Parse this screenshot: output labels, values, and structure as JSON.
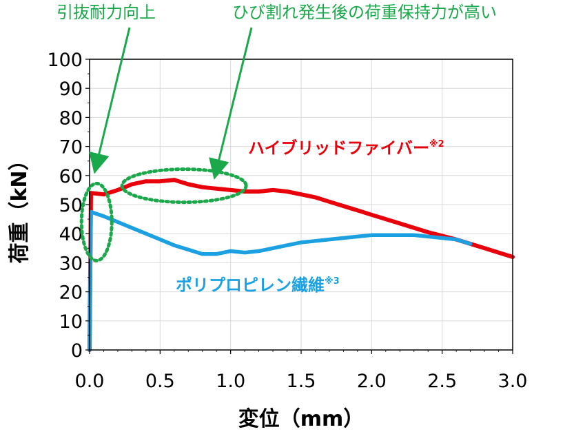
{
  "chart_data": {
    "type": "line",
    "xlabel": "変位（mm）",
    "ylabel": "荷重（kN）",
    "xlim": [
      0,
      3.0
    ],
    "ylim": [
      0,
      100
    ],
    "xticks": [
      "0.0",
      "0.5",
      "1.0",
      "1.5",
      "2.0",
      "2.5",
      "3.0"
    ],
    "yticks": [
      "0",
      "10",
      "20",
      "30",
      "40",
      "50",
      "60",
      "70",
      "80",
      "90",
      "100"
    ],
    "grid": true,
    "series": [
      {
        "name": "ハイブリッドファイバー",
        "note": "※2",
        "color": "#e8000b",
        "x": [
          0,
          0.01,
          0.1,
          0.2,
          0.3,
          0.4,
          0.5,
          0.6,
          0.7,
          0.8,
          0.9,
          1.0,
          1.1,
          1.2,
          1.3,
          1.4,
          1.5,
          1.6,
          1.7,
          1.8,
          1.9,
          2.0,
          2.2,
          2.4,
          2.6,
          2.8,
          3.0
        ],
        "y": [
          0,
          54,
          53.5,
          55,
          57,
          58,
          58,
          58.5,
          57,
          56,
          55.5,
          55,
          54.5,
          54.5,
          55,
          54.5,
          53.5,
          52.5,
          51,
          49.5,
          48,
          46.5,
          43.5,
          40.5,
          38,
          35,
          32
        ]
      },
      {
        "name": "ポリプロピレン繊維",
        "note": "※3",
        "color": "#1ba1e2",
        "x": [
          0,
          0.01,
          0.1,
          0.2,
          0.3,
          0.4,
          0.5,
          0.6,
          0.7,
          0.8,
          0.9,
          1.0,
          1.1,
          1.2,
          1.3,
          1.4,
          1.5,
          1.6,
          1.7,
          1.8,
          1.9,
          2.0,
          2.1,
          2.2,
          2.3,
          2.4,
          2.5,
          2.6,
          2.7
        ],
        "y": [
          0,
          47.5,
          46,
          44,
          42,
          40,
          38,
          36,
          34.5,
          33,
          33,
          34,
          33.5,
          34,
          35,
          36,
          37,
          37.5,
          38,
          38.5,
          39,
          39.5,
          39.5,
          39.5,
          39.5,
          39,
          38.5,
          38,
          36.5
        ]
      }
    ],
    "annotations": [
      {
        "text": "引抜耐力向上",
        "color": "#1aa84a"
      },
      {
        "text": "ひび割れ発生後の荷重保持力が高い",
        "color": "#1aa84a"
      }
    ]
  }
}
